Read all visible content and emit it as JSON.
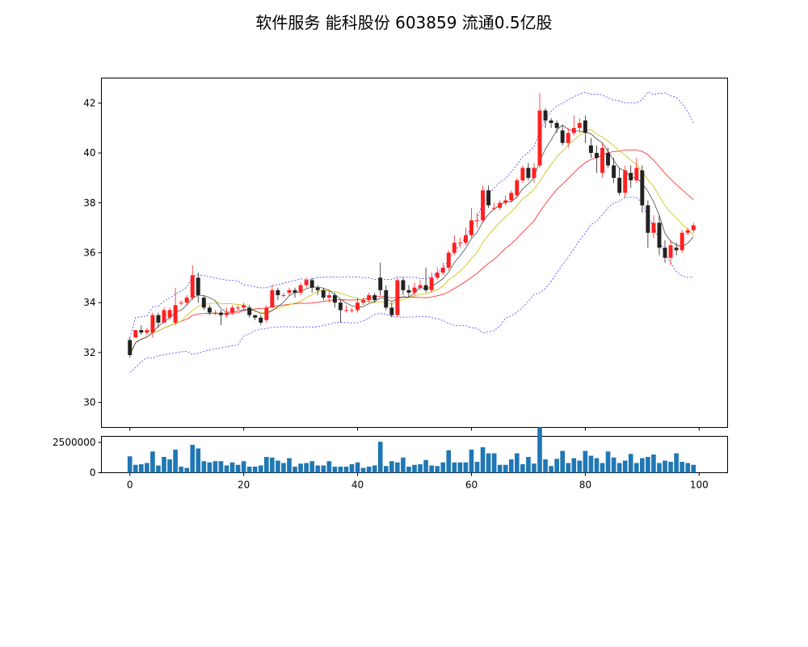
{
  "chart_data": {
    "type": "candlestick",
    "title": "软件服务 能科股份 603859 流通0.5亿股",
    "price_axis": {
      "ylim": [
        29,
        43
      ],
      "ticks": [
        30,
        32,
        34,
        36,
        38,
        40,
        42
      ]
    },
    "volume_axis": {
      "ylim": [
        0,
        3000000
      ],
      "ticks": [
        0,
        2500000
      ]
    },
    "x_axis": {
      "xlim": [
        -5,
        105
      ],
      "ticks": [
        0,
        20,
        40,
        60,
        80,
        100
      ]
    },
    "colors": {
      "up": "#ff2020",
      "down": "#222222",
      "volume": "#1f77b4",
      "boll_band": "#4040ff",
      "ma_short": "#333333",
      "ma_mid": "#c8c000",
      "ma_long": "#ff2020"
    },
    "ohlc": [
      [
        32.5,
        31.9,
        32.6,
        31.8
      ],
      [
        32.6,
        32.9,
        32.9,
        32.6
      ],
      [
        32.9,
        32.8,
        33.1,
        32.7
      ],
      [
        32.8,
        32.9,
        33.0,
        32.7
      ],
      [
        32.8,
        33.5,
        33.6,
        32.6
      ],
      [
        33.5,
        33.2,
        33.6,
        33.0
      ],
      [
        33.2,
        33.7,
        33.8,
        33.2
      ],
      [
        33.4,
        33.7,
        33.8,
        33.3
      ],
      [
        33.2,
        33.9,
        34.6,
        33.1
      ],
      [
        34.0,
        34.0,
        34.1,
        33.9
      ],
      [
        34.0,
        34.2,
        34.3,
        33.9
      ],
      [
        34.2,
        35.1,
        35.5,
        34.1
      ],
      [
        35.0,
        34.3,
        35.2,
        34.0
      ],
      [
        34.2,
        33.8,
        34.3,
        33.7
      ],
      [
        33.8,
        33.6,
        33.9,
        33.5
      ],
      [
        33.6,
        33.6,
        33.7,
        33.5
      ],
      [
        33.6,
        33.5,
        33.7,
        33.1
      ],
      [
        33.5,
        33.6,
        33.8,
        33.4
      ],
      [
        33.6,
        33.8,
        33.9,
        33.5
      ],
      [
        33.8,
        33.8,
        33.9,
        33.7
      ],
      [
        33.8,
        33.9,
        34.0,
        33.7
      ],
      [
        33.8,
        33.5,
        33.9,
        33.4
      ],
      [
        33.5,
        33.4,
        33.5,
        33.3
      ],
      [
        33.4,
        33.2,
        33.5,
        33.1
      ],
      [
        33.3,
        33.8,
        33.9,
        33.2
      ],
      [
        33.8,
        34.5,
        34.7,
        33.8
      ],
      [
        34.5,
        34.3,
        34.6,
        34.1
      ],
      [
        34.3,
        34.3,
        34.4,
        34.2
      ],
      [
        34.4,
        34.5,
        34.6,
        34.3
      ],
      [
        34.5,
        34.4,
        34.6,
        34.2
      ],
      [
        34.4,
        34.7,
        34.8,
        34.3
      ],
      [
        34.7,
        34.9,
        35.0,
        34.6
      ],
      [
        34.9,
        34.6,
        35.0,
        34.4
      ],
      [
        34.6,
        34.5,
        34.7,
        34.3
      ],
      [
        34.5,
        34.2,
        34.6,
        34.1
      ],
      [
        34.2,
        34.3,
        34.5,
        34.0
      ],
      [
        34.3,
        34.0,
        34.4,
        33.8
      ],
      [
        34.0,
        33.7,
        34.1,
        33.2
      ],
      [
        33.7,
        33.7,
        33.9,
        33.6
      ],
      [
        33.7,
        33.7,
        33.8,
        33.6
      ],
      [
        33.7,
        34.0,
        34.2,
        33.6
      ],
      [
        34.0,
        34.1,
        34.2,
        33.9
      ],
      [
        34.1,
        34.3,
        34.4,
        34.0
      ],
      [
        34.3,
        34.1,
        34.4,
        34.0
      ],
      [
        35.0,
        34.5,
        35.6,
        34.3
      ],
      [
        34.5,
        33.8,
        34.7,
        33.7
      ],
      [
        33.8,
        33.5,
        34.0,
        33.4
      ],
      [
        33.5,
        34.9,
        35.0,
        33.4
      ],
      [
        34.9,
        34.5,
        35.0,
        34.3
      ],
      [
        34.5,
        34.4,
        34.7,
        34.2
      ],
      [
        34.4,
        34.6,
        34.8,
        34.3
      ],
      [
        34.6,
        34.7,
        34.9,
        34.5
      ],
      [
        34.7,
        34.5,
        35.4,
        34.4
      ],
      [
        34.5,
        35.0,
        35.2,
        34.4
      ],
      [
        35.0,
        35.2,
        35.4,
        34.9
      ],
      [
        35.2,
        35.4,
        35.6,
        35.1
      ],
      [
        35.4,
        36.0,
        36.1,
        35.3
      ],
      [
        36.0,
        36.4,
        36.7,
        35.9
      ],
      [
        36.4,
        36.4,
        36.6,
        36.2
      ],
      [
        36.4,
        36.7,
        37.0,
        36.3
      ],
      [
        36.7,
        37.3,
        37.8,
        36.6
      ],
      [
        37.3,
        37.3,
        37.6,
        37.0
      ],
      [
        37.3,
        38.5,
        38.7,
        37.2
      ],
      [
        38.5,
        37.9,
        38.7,
        37.8
      ],
      [
        37.8,
        37.8,
        38.0,
        37.7
      ],
      [
        37.8,
        38.0,
        38.1,
        37.7
      ],
      [
        38.0,
        38.1,
        38.3,
        37.9
      ],
      [
        38.1,
        38.4,
        38.5,
        38.0
      ],
      [
        38.3,
        38.9,
        39.0,
        38.2
      ],
      [
        38.9,
        39.4,
        39.5,
        38.8
      ],
      [
        39.4,
        39.0,
        39.6,
        38.9
      ],
      [
        39.0,
        39.4,
        39.6,
        38.8
      ],
      [
        39.5,
        41.7,
        42.4,
        39.4
      ],
      [
        41.7,
        41.3,
        41.8,
        41.0
      ],
      [
        41.3,
        41.2,
        41.4,
        41.0
      ],
      [
        41.2,
        41.0,
        41.3,
        40.8
      ],
      [
        40.9,
        40.4,
        41.1,
        40.3
      ],
      [
        40.4,
        40.8,
        41.0,
        40.2
      ],
      [
        40.8,
        41.0,
        41.5,
        40.7
      ],
      [
        41.0,
        41.2,
        41.4,
        40.8
      ],
      [
        41.3,
        40.8,
        41.5,
        40.4
      ],
      [
        40.3,
        40.0,
        40.6,
        39.8
      ],
      [
        40.0,
        39.8,
        40.3,
        39.2
      ],
      [
        39.2,
        40.2,
        40.4,
        39.0
      ],
      [
        40.0,
        39.5,
        40.2,
        39.4
      ],
      [
        39.5,
        39.0,
        39.8,
        38.8
      ],
      [
        39.0,
        38.4,
        39.4,
        38.3
      ],
      [
        38.4,
        39.3,
        39.5,
        38.2
      ],
      [
        39.2,
        38.9,
        39.5,
        38.6
      ],
      [
        38.9,
        39.4,
        39.8,
        38.8
      ],
      [
        39.3,
        37.9,
        39.5,
        37.6
      ],
      [
        37.9,
        36.8,
        38.1,
        36.2
      ],
      [
        36.8,
        37.2,
        37.5,
        36.6
      ],
      [
        37.2,
        36.2,
        37.5,
        35.9
      ],
      [
        36.2,
        35.8,
        36.5,
        35.6
      ],
      [
        35.8,
        36.3,
        36.5,
        35.5
      ],
      [
        36.2,
        36.1,
        36.4,
        35.9
      ],
      [
        36.1,
        36.8,
        36.9,
        36.0
      ],
      [
        36.8,
        36.9,
        37.0,
        36.7
      ],
      [
        36.9,
        37.1,
        37.2,
        36.8
      ]
    ],
    "volume": [
      1350000,
      650000,
      700000,
      800000,
      1750000,
      600000,
      1300000,
      1100000,
      1900000,
      500000,
      400000,
      2300000,
      2000000,
      950000,
      850000,
      950000,
      950000,
      600000,
      850000,
      650000,
      950000,
      500000,
      500000,
      600000,
      1300000,
      1250000,
      1000000,
      800000,
      1200000,
      500000,
      750000,
      800000,
      950000,
      600000,
      600000,
      950000,
      500000,
      500000,
      500000,
      700000,
      850000,
      400000,
      500000,
      600000,
      2550000,
      550000,
      950000,
      850000,
      1250000,
      500000,
      650000,
      700000,
      1050000,
      600000,
      550000,
      850000,
      1850000,
      850000,
      850000,
      850000,
      1900000,
      900000,
      2100000,
      1600000,
      1600000,
      650000,
      650000,
      1100000,
      1600000,
      700000,
      1300000,
      750000,
      3750000,
      1100000,
      550000,
      1150000,
      1800000,
      800000,
      1200000,
      1000000,
      1800000,
      1400000,
      1200000,
      800000,
      1750000,
      1250000,
      800000,
      1000000,
      1550000,
      800000,
      1200000,
      1300000,
      1500000,
      800000,
      1000000,
      900000,
      1600000,
      900000,
      800000,
      650000
    ]
  }
}
